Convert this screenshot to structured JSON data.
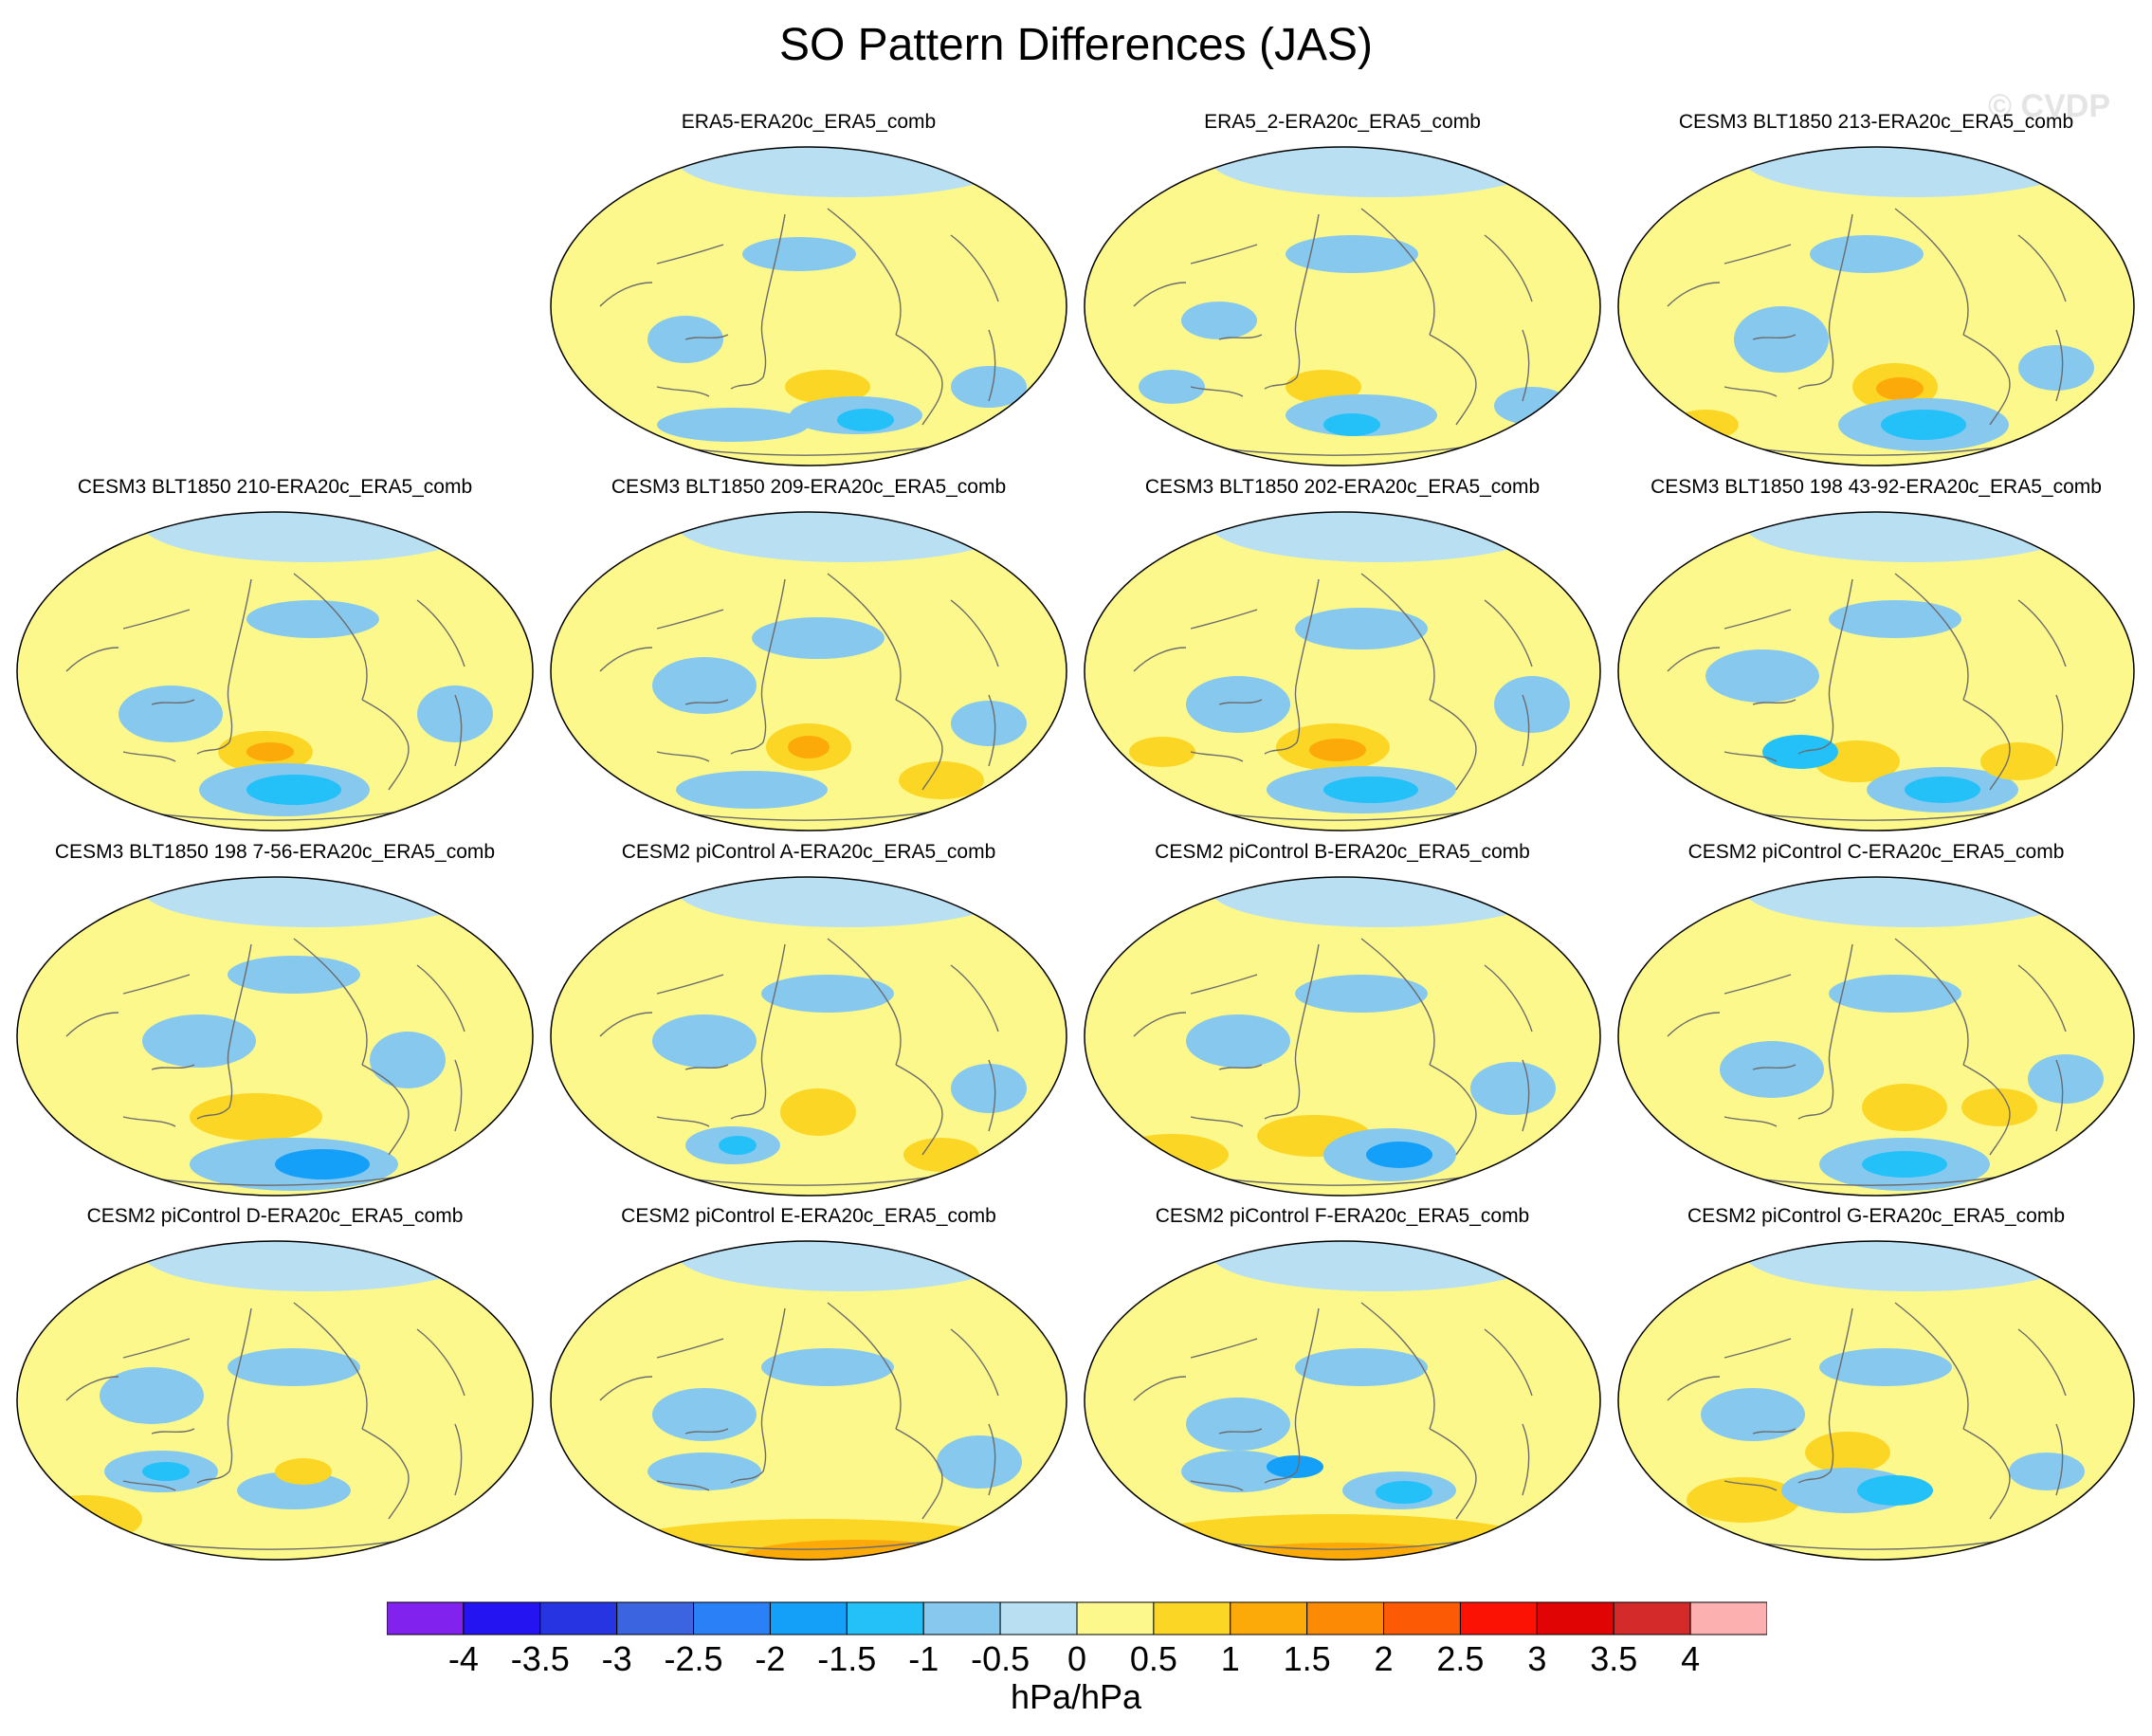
{
  "figure": {
    "title": "SO Pattern Differences (JAS)",
    "watermark": "© CVDP",
    "units": "hPa/hPa"
  },
  "colorbar": {
    "levels": [
      "-4",
      "-3.5",
      "-3",
      "-2.5",
      "-2",
      "-1.5",
      "-1",
      "-0.5",
      "0",
      "0.5",
      "1",
      "1.5",
      "2",
      "2.5",
      "3",
      "3.5",
      "4"
    ],
    "colors": [
      "#8222ee",
      "#2414f2",
      "#2634e2",
      "#3a64e0",
      "#2a80f6",
      "#14a0f8",
      "#24c0f8",
      "#86c8ee",
      "#b8e0f2",
      "#fcf88c",
      "#fcd624",
      "#fcaa0a",
      "#fc8a04",
      "#fc5a04",
      "#fc1204",
      "#e00404",
      "#d42a2a",
      "#fcb0b0"
    ]
  },
  "panels": [
    {
      "label": "ERA5-ERA20c_ERA5_comb"
    },
    {
      "label": "ERA5_2-ERA20c_ERA5_comb"
    },
    {
      "label": "CESM3 BLT1850 213-ERA20c_ERA5_comb"
    },
    {
      "label": "CESM3 BLT1850 210-ERA20c_ERA5_comb"
    },
    {
      "label": "CESM3 BLT1850 209-ERA20c_ERA5_comb"
    },
    {
      "label": "CESM3 BLT1850 202-ERA20c_ERA5_comb"
    },
    {
      "label": "CESM3 BLT1850 198 43-92-ERA20c_ERA5_comb"
    },
    {
      "label": "CESM3 BLT1850 198 7-56-ERA20c_ERA5_comb"
    },
    {
      "label": "CESM2 piControl A-ERA20c_ERA5_comb"
    },
    {
      "label": "CESM2 piControl B-ERA20c_ERA5_comb"
    },
    {
      "label": "CESM2 piControl C-ERA20c_ERA5_comb"
    },
    {
      "label": "CESM2 piControl D-ERA20c_ERA5_comb"
    },
    {
      "label": "CESM2 piControl E-ERA20c_ERA5_comb"
    },
    {
      "label": "CESM2 piControl F-ERA20c_ERA5_comb"
    },
    {
      "label": "CESM2 piControl G-ERA20c_ERA5_comb"
    }
  ]
}
